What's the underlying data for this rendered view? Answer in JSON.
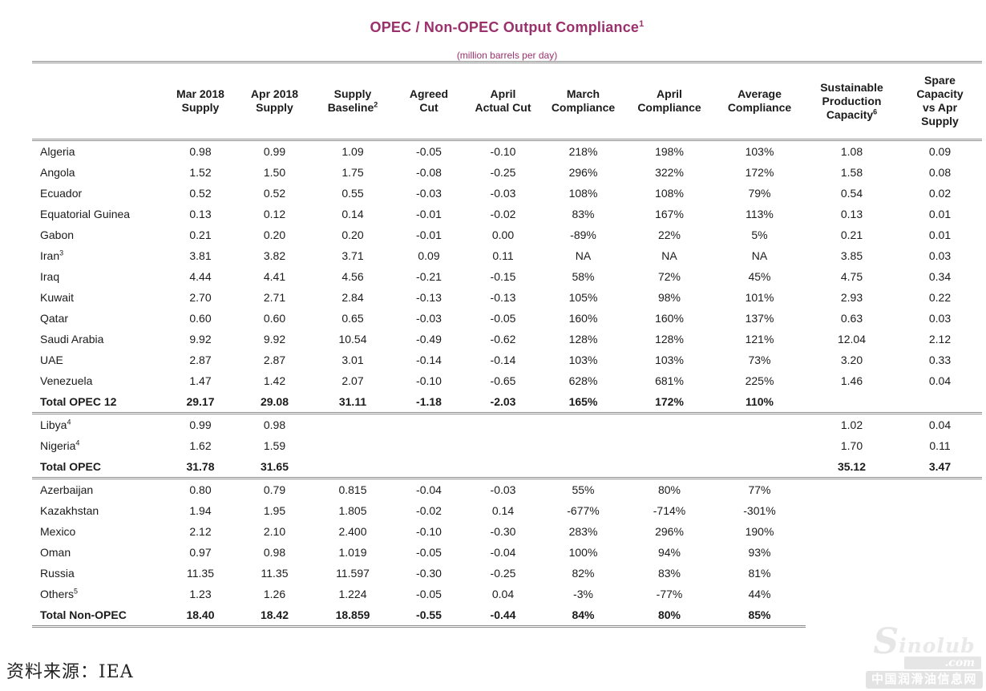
{
  "title": {
    "text": "OPEC / Non-OPEC Output Compliance",
    "sup": "1",
    "subtitle": "(million barrels per day)",
    "accent_color": "#9B316C"
  },
  "table": {
    "columns": [
      {
        "label": "",
        "sup": ""
      },
      {
        "label": "Mar 2018\nSupply",
        "sup": ""
      },
      {
        "label": "Apr 2018\nSupply",
        "sup": ""
      },
      {
        "label": "Supply\nBaseline",
        "sup": "2"
      },
      {
        "label": "Agreed\nCut",
        "sup": ""
      },
      {
        "label": "April\nActual Cut",
        "sup": ""
      },
      {
        "label": "March\nCompliance",
        "sup": ""
      },
      {
        "label": "April\nCompliance",
        "sup": ""
      },
      {
        "label": "Average\nCompliance",
        "sup": ""
      },
      {
        "label": "Sustainable\nProduction\nCapacity",
        "sup": "6"
      },
      {
        "label": "Spare\nCapacity\nvs Apr\nSupply",
        "sup": ""
      }
    ],
    "sections": [
      {
        "rows": [
          {
            "name": "Algeria",
            "sup": "",
            "bold": false,
            "values": [
              "0.98",
              "0.99",
              "1.09",
              "-0.05",
              "-0.10",
              "218%",
              "198%",
              "103%",
              "1.08",
              "0.09"
            ]
          },
          {
            "name": "Angola",
            "sup": "",
            "bold": false,
            "values": [
              "1.52",
              "1.50",
              "1.75",
              "-0.08",
              "-0.25",
              "296%",
              "322%",
              "172%",
              "1.58",
              "0.08"
            ]
          },
          {
            "name": "Ecuador",
            "sup": "",
            "bold": false,
            "values": [
              "0.52",
              "0.52",
              "0.55",
              "-0.03",
              "-0.03",
              "108%",
              "108%",
              "79%",
              "0.54",
              "0.02"
            ]
          },
          {
            "name": "Equatorial Guinea",
            "sup": "",
            "bold": false,
            "values": [
              "0.13",
              "0.12",
              "0.14",
              "-0.01",
              "-0.02",
              "83%",
              "167%",
              "113%",
              "0.13",
              "0.01"
            ]
          },
          {
            "name": "Gabon",
            "sup": "",
            "bold": false,
            "values": [
              "0.21",
              "0.20",
              "0.20",
              "-0.01",
              "0.00",
              "-89%",
              "22%",
              "5%",
              "0.21",
              "0.01"
            ]
          },
          {
            "name": "Iran",
            "sup": "3",
            "bold": false,
            "values": [
              "3.81",
              "3.82",
              "3.71",
              "0.09",
              "0.11",
              "NA",
              "NA",
              "NA",
              "3.85",
              "0.03"
            ]
          },
          {
            "name": "Iraq",
            "sup": "",
            "bold": false,
            "values": [
              "4.44",
              "4.41",
              "4.56",
              "-0.21",
              "-0.15",
              "58%",
              "72%",
              "45%",
              "4.75",
              "0.34"
            ]
          },
          {
            "name": "Kuwait",
            "sup": "",
            "bold": false,
            "values": [
              "2.70",
              "2.71",
              "2.84",
              "-0.13",
              "-0.13",
              "105%",
              "98%",
              "101%",
              "2.93",
              "0.22"
            ]
          },
          {
            "name": "Qatar",
            "sup": "",
            "bold": false,
            "values": [
              "0.60",
              "0.60",
              "0.65",
              "-0.03",
              "-0.05",
              "160%",
              "160%",
              "137%",
              "0.63",
              "0.03"
            ]
          },
          {
            "name": "Saudi Arabia",
            "sup": "",
            "bold": false,
            "values": [
              "9.92",
              "9.92",
              "10.54",
              "-0.49",
              "-0.62",
              "128%",
              "128%",
              "121%",
              "12.04",
              "2.12"
            ]
          },
          {
            "name": "UAE",
            "sup": "",
            "bold": false,
            "values": [
              "2.87",
              "2.87",
              "3.01",
              "-0.14",
              "-0.14",
              "103%",
              "103%",
              "73%",
              "3.20",
              "0.33"
            ]
          },
          {
            "name": "Venezuela",
            "sup": "",
            "bold": false,
            "values": [
              "1.47",
              "1.42",
              "2.07",
              "-0.10",
              "-0.65",
              "628%",
              "681%",
              "225%",
              "1.46",
              "0.04"
            ]
          },
          {
            "name": "Total OPEC 12",
            "sup": "",
            "bold": true,
            "values": [
              "29.17",
              "29.08",
              "31.11",
              "-1.18",
              "-2.03",
              "165%",
              "172%",
              "110%",
              "",
              ""
            ]
          }
        ]
      },
      {
        "rows": [
          {
            "name": "Libya",
            "sup": "4",
            "bold": false,
            "values": [
              "0.99",
              "0.98",
              "",
              "",
              "",
              "",
              "",
              "",
              "1.02",
              "0.04"
            ]
          },
          {
            "name": "Nigeria",
            "sup": "4",
            "bold": false,
            "values": [
              "1.62",
              "1.59",
              "",
              "",
              "",
              "",
              "",
              "",
              "1.70",
              "0.11"
            ]
          },
          {
            "name": "Total OPEC",
            "sup": "",
            "bold": true,
            "values": [
              "31.78",
              "31.65",
              "",
              "",
              "",
              "",
              "",
              "",
              "35.12",
              "3.47"
            ]
          }
        ]
      },
      {
        "rows": [
          {
            "name": "Azerbaijan",
            "sup": "",
            "bold": false,
            "values": [
              "0.80",
              "0.79",
              "0.815",
              "-0.04",
              "-0.03",
              "55%",
              "80%",
              "77%",
              "",
              ""
            ]
          },
          {
            "name": "Kazakhstan",
            "sup": "",
            "bold": false,
            "values": [
              "1.94",
              "1.95",
              "1.805",
              "-0.02",
              "0.14",
              "-677%",
              "-714%",
              "-301%",
              "",
              ""
            ]
          },
          {
            "name": "Mexico",
            "sup": "",
            "bold": false,
            "values": [
              "2.12",
              "2.10",
              "2.400",
              "-0.10",
              "-0.30",
              "283%",
              "296%",
              "190%",
              "",
              ""
            ]
          },
          {
            "name": "Oman",
            "sup": "",
            "bold": false,
            "values": [
              "0.97",
              "0.98",
              "1.019",
              "-0.05",
              "-0.04",
              "100%",
              "94%",
              "93%",
              "",
              ""
            ]
          },
          {
            "name": "Russia",
            "sup": "",
            "bold": false,
            "values": [
              "11.35",
              "11.35",
              "11.597",
              "-0.30",
              "-0.25",
              "82%",
              "83%",
              "81%",
              "",
              ""
            ]
          },
          {
            "name": "Others",
            "sup": "5",
            "bold": false,
            "values": [
              "1.23",
              "1.26",
              "1.224",
              "-0.05",
              "0.04",
              "-3%",
              "-77%",
              "44%",
              "",
              ""
            ]
          },
          {
            "name": "Total Non-OPEC",
            "sup": "",
            "bold": true,
            "values": [
              "18.40",
              "18.42",
              "18.859",
              "-0.55",
              "-0.44",
              "84%",
              "80%",
              "85%",
              "",
              ""
            ]
          }
        ]
      }
    ]
  },
  "source": {
    "text": "资料来源：IEA"
  },
  "watermark": {
    "s": "S",
    "name": "inolub",
    "com": ".com",
    "chinese": "中国润滑油信息网"
  }
}
